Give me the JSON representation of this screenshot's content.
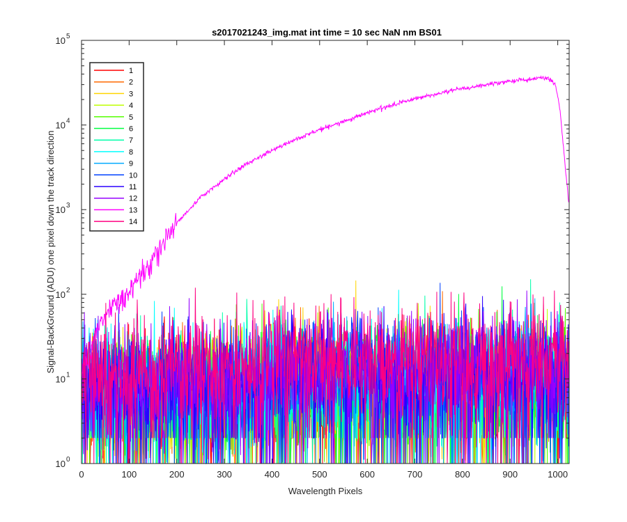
{
  "chart_data": {
    "type": "line",
    "title": "s2017021243_img.mat int time = 10 sec  NaN nm BS01",
    "xlabel": "Wavelength Pixels",
    "ylabel": "Signal-BackGround (ADU) one pixel down the track direction",
    "xlim": [
      0,
      1024
    ],
    "ylim": [
      1,
      100000
    ],
    "yscale": "log",
    "xticks": [
      "0",
      "100",
      "200",
      "300",
      "400",
      "500",
      "600",
      "700",
      "800",
      "900",
      "1000"
    ],
    "xtick_values": [
      0,
      100,
      200,
      300,
      400,
      500,
      600,
      700,
      800,
      900,
      1000
    ],
    "yticks": [
      {
        "base": "10",
        "exp": "0",
        "value": 1
      },
      {
        "base": "10",
        "exp": "1",
        "value": 10
      },
      {
        "base": "10",
        "exp": "2",
        "value": 100
      },
      {
        "base": "10",
        "exp": "3",
        "value": 1000
      },
      {
        "base": "10",
        "exp": "4",
        "value": 10000
      },
      {
        "base": "10",
        "exp": "5",
        "value": 100000
      }
    ],
    "grid": false,
    "legend_position": "top-left",
    "series": [
      {
        "name": "1",
        "color": "#ff0000",
        "level": 8
      },
      {
        "name": "2",
        "color": "#ff6a00",
        "level": 8
      },
      {
        "name": "3",
        "color": "#ffd500",
        "level": 8
      },
      {
        "name": "4",
        "color": "#bfff00",
        "level": 8
      },
      {
        "name": "5",
        "color": "#55ff00",
        "level": 8
      },
      {
        "name": "6",
        "color": "#00ff40",
        "level": 8
      },
      {
        "name": "7",
        "color": "#00ffaa",
        "level": 9
      },
      {
        "name": "8",
        "color": "#00ffff",
        "level": 9
      },
      {
        "name": "9",
        "color": "#00aaff",
        "level": 9
      },
      {
        "name": "10",
        "color": "#0040ff",
        "level": 10
      },
      {
        "name": "11",
        "color": "#2a00ff",
        "level": 10
      },
      {
        "name": "12",
        "color": "#9500ff",
        "level": 11
      },
      {
        "name": "13",
        "color": "#ff00ff",
        "profile": [
          [
            0,
            12
          ],
          [
            20,
            22
          ],
          [
            40,
            45
          ],
          [
            60,
            70
          ],
          [
            80,
            85
          ],
          [
            100,
            110
          ],
          [
            120,
            160
          ],
          [
            150,
            260
          ],
          [
            200,
            700
          ],
          [
            250,
            1400
          ],
          [
            300,
            2300
          ],
          [
            350,
            3600
          ],
          [
            400,
            5000
          ],
          [
            450,
            6800
          ],
          [
            500,
            8800
          ],
          [
            550,
            11000
          ],
          [
            600,
            14000
          ],
          [
            650,
            17000
          ],
          [
            700,
            20500
          ],
          [
            750,
            23500
          ],
          [
            800,
            27000
          ],
          [
            850,
            30000
          ],
          [
            900,
            33000
          ],
          [
            940,
            34500
          ],
          [
            970,
            36500
          ],
          [
            985,
            34500
          ],
          [
            995,
            30000
          ],
          [
            1005,
            15000
          ],
          [
            1015,
            3500
          ],
          [
            1023,
            1200
          ]
        ]
      },
      {
        "name": "14",
        "color": "#ff0080",
        "level": 16
      }
    ]
  }
}
